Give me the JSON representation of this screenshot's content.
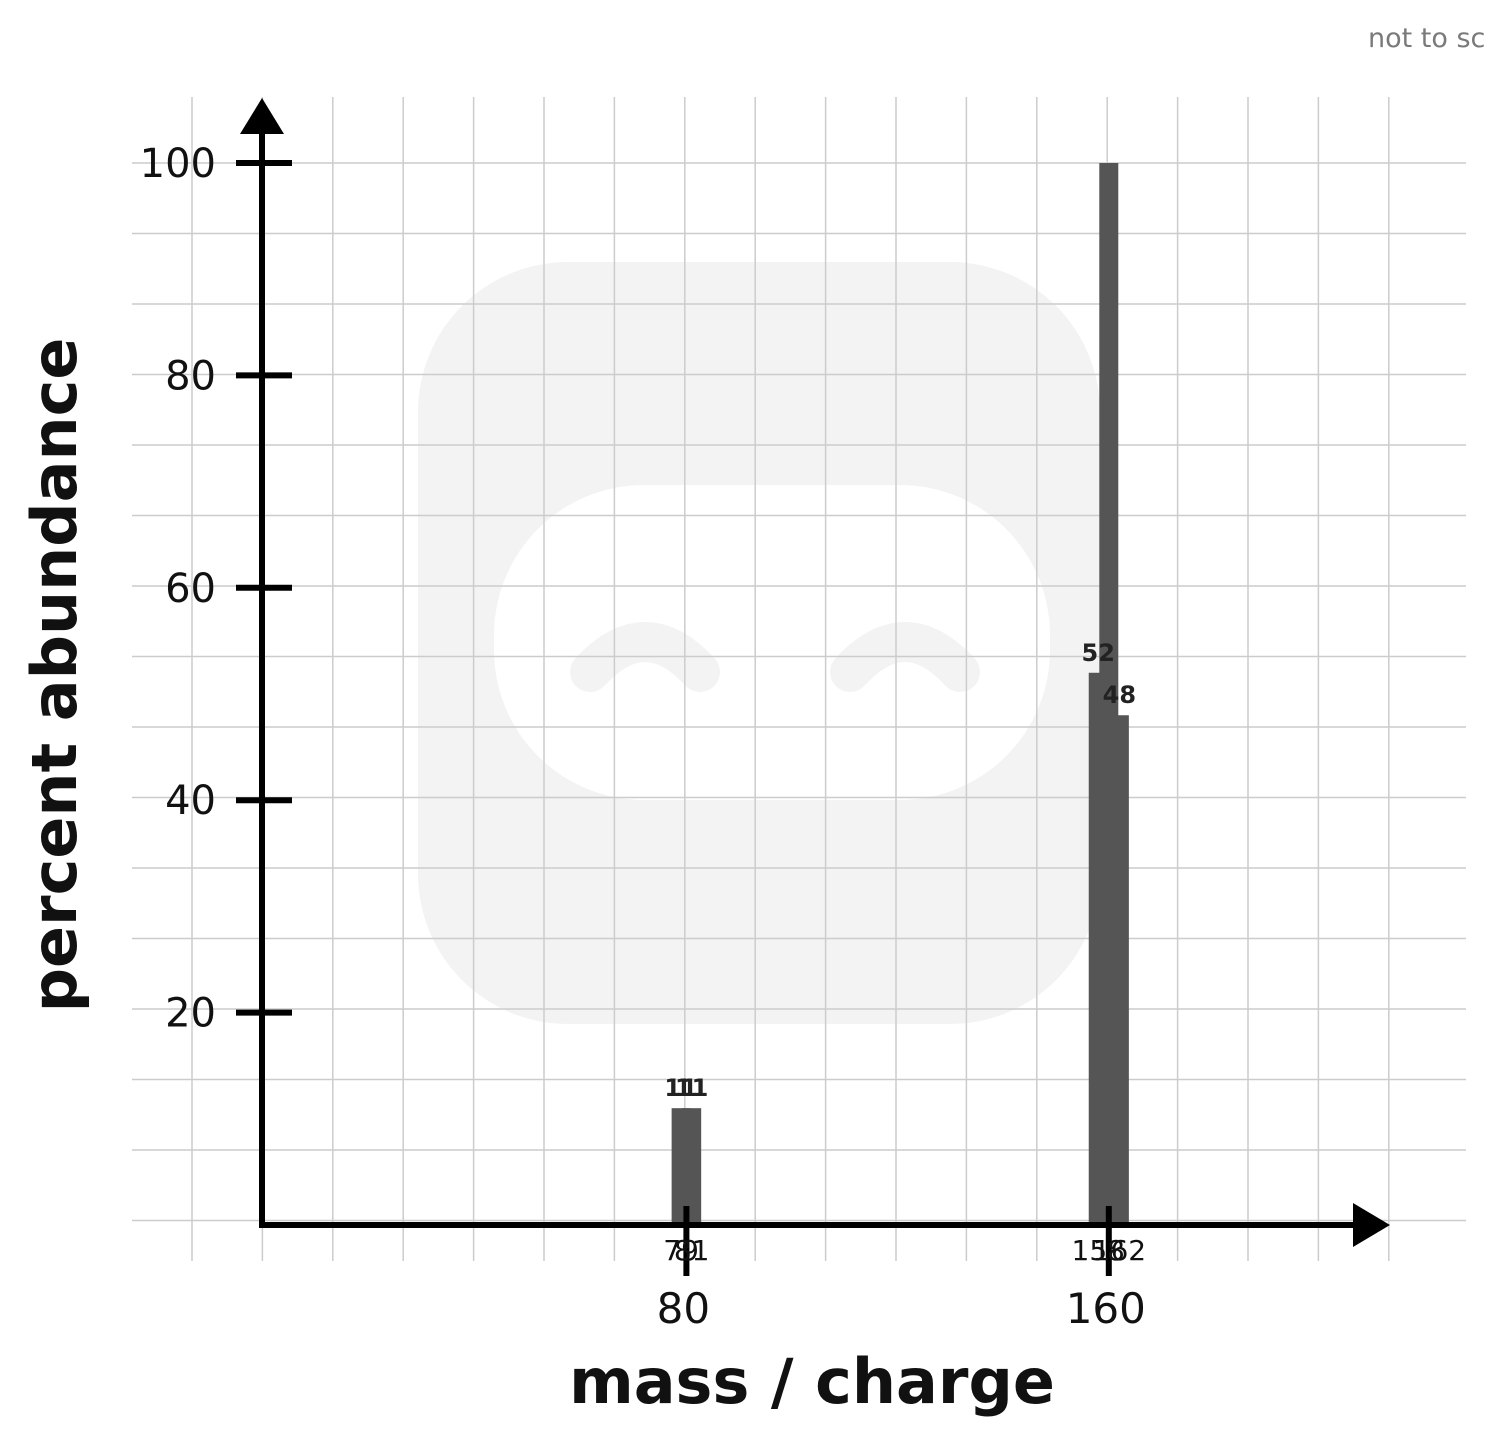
{
  "note": "not to sc",
  "colors": {
    "bar": "#555555",
    "axis": "#000000",
    "grid": "#cccccc",
    "watermark": "#f3f3f3"
  },
  "watermark_icon": "robot-face-icon",
  "chart_data": {
    "type": "bar",
    "xlabel": "mass / charge",
    "ylabel": "percent abundance",
    "grid": true,
    "ylim": [
      0,
      100
    ],
    "yticks": [
      20,
      40,
      60,
      80,
      100
    ],
    "xticks_major": [
      80,
      160
    ],
    "bars": [
      {
        "x": 79,
        "value": 11,
        "label": "11",
        "xlabel": "79"
      },
      {
        "x": 81,
        "value": 11,
        "label": "11",
        "xlabel": "81"
      },
      {
        "x": 158,
        "value": 52,
        "label": "52",
        "xlabel": "158"
      },
      {
        "x": 160,
        "value": 100,
        "label": "",
        "xlabel": ""
      },
      {
        "x": 162,
        "value": 48,
        "label": "48",
        "xlabel": "162"
      }
    ]
  }
}
